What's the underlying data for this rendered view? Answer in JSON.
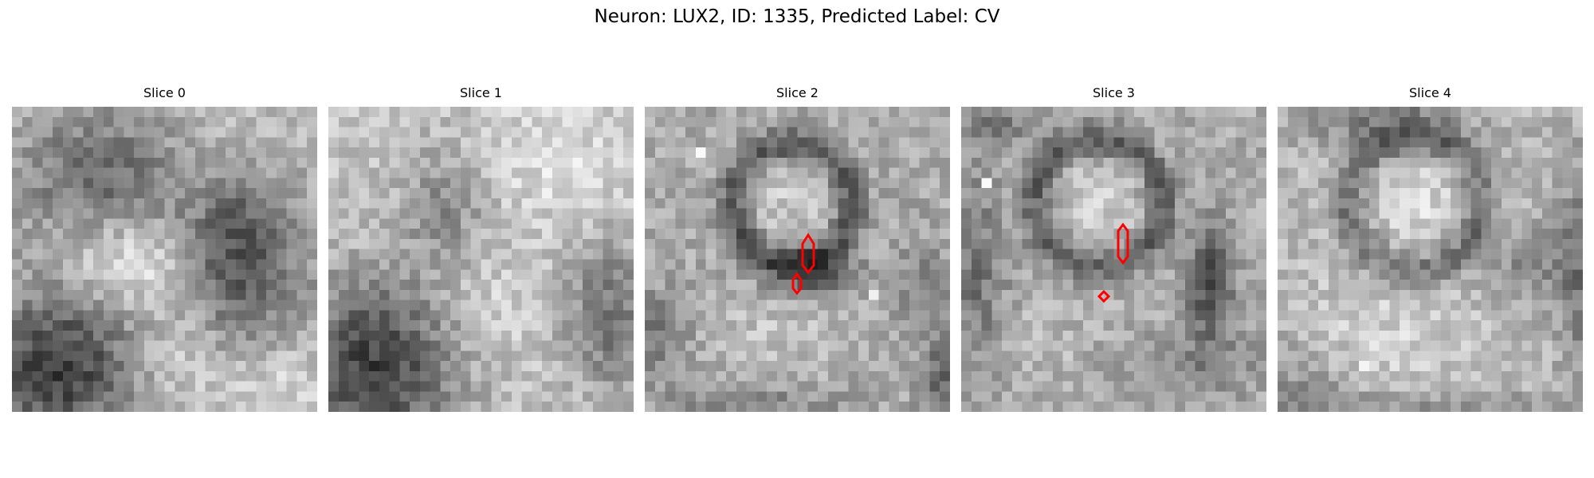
{
  "figure": {
    "title": "Neuron: LUX2, ID: 1335, Predicted Label: CV"
  },
  "panels": [
    {
      "title": "Slice 0"
    },
    {
      "title": "Slice 1"
    },
    {
      "title": "Slice 2"
    },
    {
      "title": "Slice 3"
    },
    {
      "title": "Slice 4"
    }
  ],
  "colors": {
    "background": "#ffffff",
    "contour": "#ff0000",
    "colormap": "gray"
  }
}
